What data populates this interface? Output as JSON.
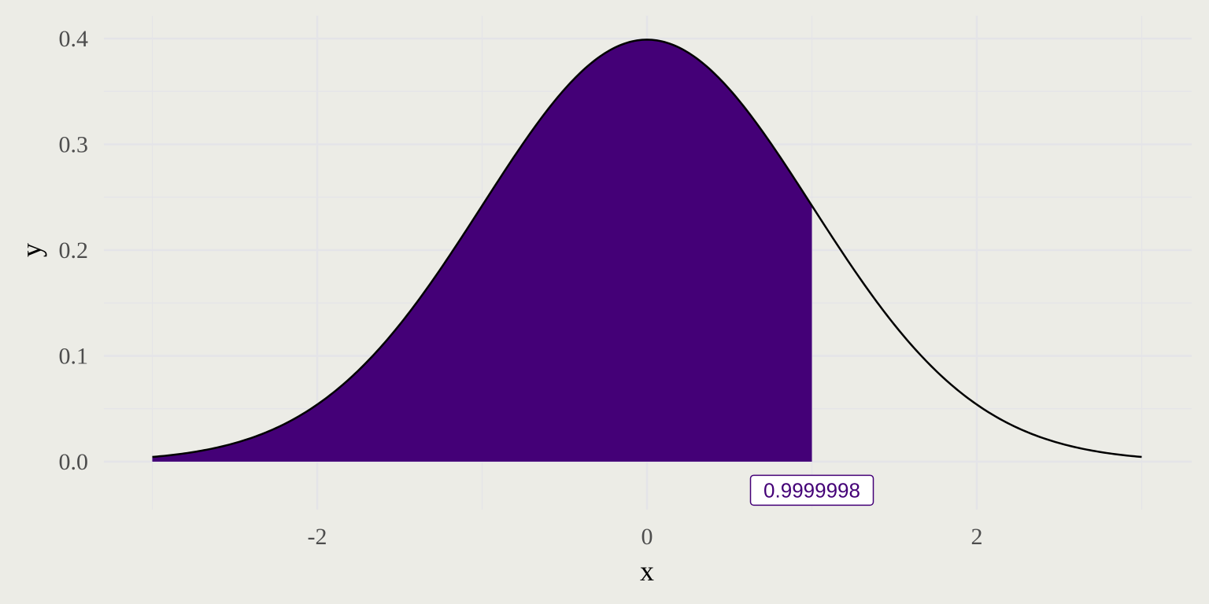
{
  "colors": {
    "background": "#ecece6",
    "grid": "#e4e4e8",
    "fill": "#440077",
    "curve": "#000000",
    "tick_text": "#4d4d4d",
    "callout": "#440077"
  },
  "chart_data": {
    "type": "area",
    "title": "",
    "xlabel": "x",
    "ylabel": "y",
    "distribution": "standard normal density",
    "xlim": [
      -3,
      3
    ],
    "ylim": [
      0,
      0.4
    ],
    "x_ticks": [
      -2,
      0,
      2
    ],
    "x_tick_labels": [
      "-2",
      "0",
      "2"
    ],
    "y_ticks": [
      0.0,
      0.1,
      0.2,
      0.3,
      0.4
    ],
    "y_tick_labels": [
      "0.0",
      "0.1",
      "0.2",
      "0.3",
      "0.4"
    ],
    "grid": true,
    "shaded_region": {
      "from": -3,
      "to": 1
    },
    "annotation": {
      "text": "0.9999998",
      "x": 1,
      "y": -0.027
    }
  }
}
